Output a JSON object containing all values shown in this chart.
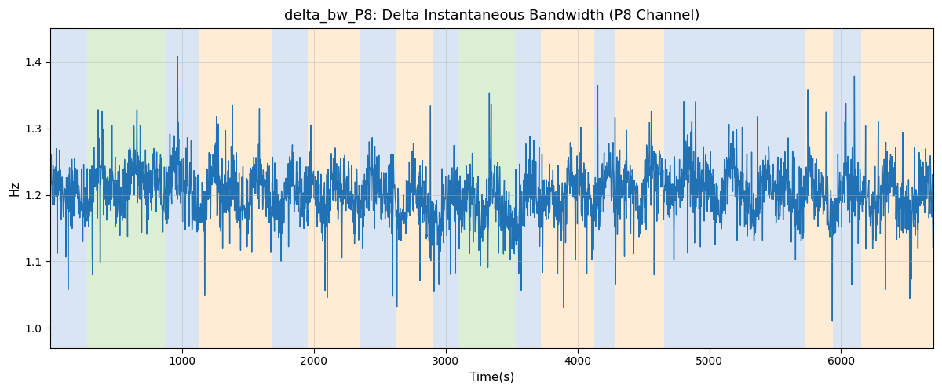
{
  "title": "delta_bw_P8: Delta Instantaneous Bandwidth (P8 Channel)",
  "xlabel": "Time(s)",
  "ylabel": "Hz",
  "xlim": [
    0,
    6700
  ],
  "ylim": [
    0.97,
    1.45
  ],
  "yticks": [
    1.0,
    1.1,
    1.2,
    1.3,
    1.4
  ],
  "xticks": [
    1000,
    2000,
    3000,
    4000,
    5000,
    6000
  ],
  "line_color": "#2171b5",
  "line_width": 1.0,
  "background_color": "#ffffff",
  "grid_color": "#b0b0b0",
  "title_fontsize": 13,
  "label_fontsize": 11,
  "colored_bands": [
    {
      "xmin": 0,
      "xmax": 280,
      "color": "#aec6e8",
      "alpha": 0.45
    },
    {
      "xmin": 280,
      "xmax": 870,
      "color": "#b2dba1",
      "alpha": 0.45
    },
    {
      "xmin": 870,
      "xmax": 1130,
      "color": "#aec6e8",
      "alpha": 0.45
    },
    {
      "xmin": 1130,
      "xmax": 1680,
      "color": "#fdd9a0",
      "alpha": 0.45
    },
    {
      "xmin": 1680,
      "xmax": 1950,
      "color": "#aec6e8",
      "alpha": 0.45
    },
    {
      "xmin": 1950,
      "xmax": 2350,
      "color": "#fdd9a0",
      "alpha": 0.45
    },
    {
      "xmin": 2350,
      "xmax": 2620,
      "color": "#aec6e8",
      "alpha": 0.45
    },
    {
      "xmin": 2620,
      "xmax": 2900,
      "color": "#fdd9a0",
      "alpha": 0.45
    },
    {
      "xmin": 2900,
      "xmax": 3100,
      "color": "#aec6e8",
      "alpha": 0.45
    },
    {
      "xmin": 3100,
      "xmax": 3530,
      "color": "#b2dba1",
      "alpha": 0.45
    },
    {
      "xmin": 3530,
      "xmax": 3720,
      "color": "#aec6e8",
      "alpha": 0.45
    },
    {
      "xmin": 3720,
      "xmax": 4130,
      "color": "#fdd9a0",
      "alpha": 0.45
    },
    {
      "xmin": 4130,
      "xmax": 4280,
      "color": "#aec6e8",
      "alpha": 0.45
    },
    {
      "xmin": 4280,
      "xmax": 4660,
      "color": "#fdd9a0",
      "alpha": 0.45
    },
    {
      "xmin": 4660,
      "xmax": 5730,
      "color": "#aec6e8",
      "alpha": 0.45
    },
    {
      "xmin": 5730,
      "xmax": 5940,
      "color": "#fdd9a0",
      "alpha": 0.45
    },
    {
      "xmin": 5940,
      "xmax": 6150,
      "color": "#aec6e8",
      "alpha": 0.45
    },
    {
      "xmin": 6150,
      "xmax": 6700,
      "color": "#fdd9a0",
      "alpha": 0.45
    }
  ],
  "seed": 42,
  "n_points": 3000,
  "signal_mean": 1.2,
  "noise_std": 0.025,
  "spike_std": 0.055,
  "spike_prob": 0.12
}
